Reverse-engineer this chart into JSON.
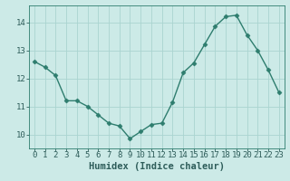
{
  "x": [
    0,
    1,
    2,
    3,
    4,
    5,
    6,
    7,
    8,
    9,
    10,
    11,
    12,
    13,
    14,
    15,
    16,
    17,
    18,
    19,
    20,
    21,
    22,
    23
  ],
  "y": [
    12.6,
    12.4,
    12.1,
    11.2,
    11.2,
    11.0,
    10.7,
    10.4,
    10.3,
    9.85,
    10.1,
    10.35,
    10.4,
    11.15,
    12.2,
    12.55,
    13.2,
    13.85,
    14.2,
    14.25,
    13.55,
    13.0,
    12.3,
    11.5
  ],
  "line_color": "#2e7d6e",
  "marker": "D",
  "marker_size": 2.5,
  "bg_color": "#cceae7",
  "grid_color": "#aad4d0",
  "axis_color": "#2e7d6e",
  "xlabel": "Humidex (Indice chaleur)",
  "ylim": [
    9.5,
    14.6
  ],
  "xlim": [
    -0.5,
    23.5
  ],
  "yticks": [
    10,
    11,
    12,
    13,
    14
  ],
  "xticks": [
    0,
    1,
    2,
    3,
    4,
    5,
    6,
    7,
    8,
    9,
    10,
    11,
    12,
    13,
    14,
    15,
    16,
    17,
    18,
    19,
    20,
    21,
    22,
    23
  ],
  "font_color": "#2e5d5a",
  "xlabel_fontsize": 7.5,
  "tick_fontsize": 6.5,
  "linewidth": 1.0
}
